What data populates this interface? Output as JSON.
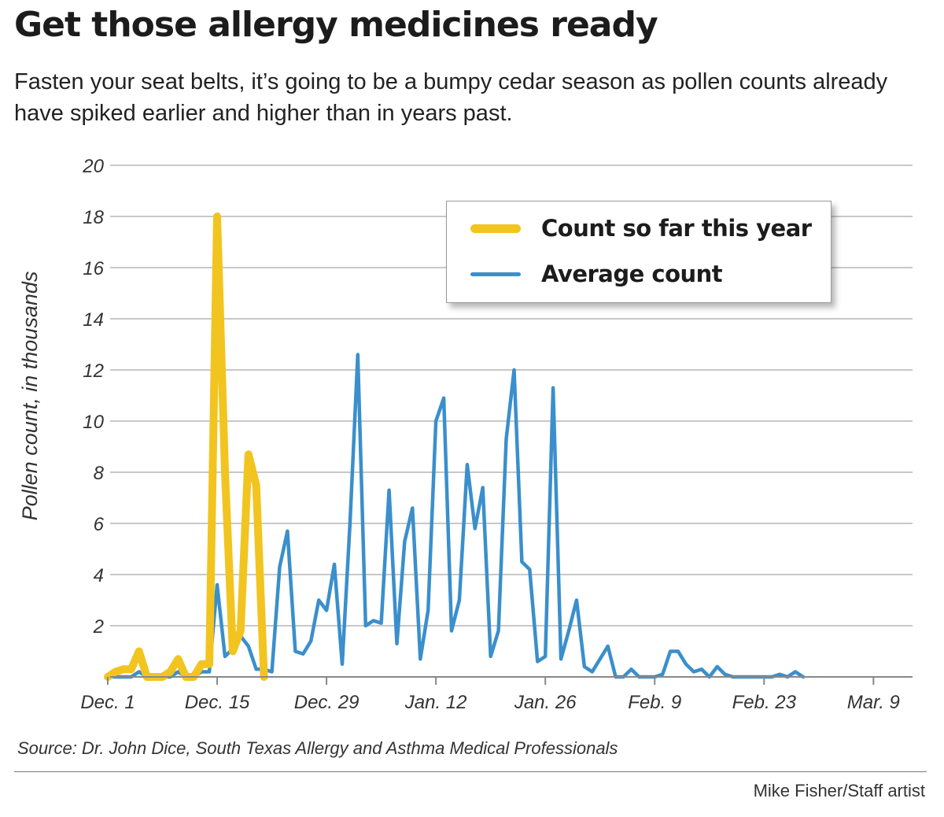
{
  "header": {
    "title": "Get those allergy medicines ready",
    "subtitle": "Fasten your seat belts, it’s going to be a bumpy cedar season as pollen counts already have spiked earlier and higher than in years past."
  },
  "footer": {
    "source": "Source: Dr. John Dice, South Texas Allergy and Asthma Medical Professionals",
    "credit": "Mike Fisher/Staff artist"
  },
  "colors": {
    "this_year": "#F2C41F",
    "average": "#3A8FCC",
    "grid": "#c8c8c8",
    "axis": "#888888"
  },
  "chart_data": {
    "type": "line",
    "title": "Get those allergy medicines ready",
    "ylabel": "Pollen count, in thousands",
    "xlabel": "",
    "x_unit": "days after Dec. 1",
    "ylim": [
      0,
      20
    ],
    "xlim": [
      0,
      103
    ],
    "yticks": [
      2,
      4,
      6,
      8,
      10,
      12,
      14,
      16,
      18,
      20
    ],
    "xticks": [
      {
        "x": 0,
        "label": "Dec. 1"
      },
      {
        "x": 14,
        "label": "Dec. 15"
      },
      {
        "x": 28,
        "label": "Dec. 29"
      },
      {
        "x": 42,
        "label": "Jan. 12"
      },
      {
        "x": 56,
        "label": "Jan. 26"
      },
      {
        "x": 70,
        "label": "Feb. 9"
      },
      {
        "x": 84,
        "label": "Feb. 23"
      },
      {
        "x": 98,
        "label": "Mar. 9"
      }
    ],
    "grid": true,
    "legend_position": "top-right",
    "series": [
      {
        "name": "Count so far this year",
        "color": "#F2C41F",
        "style": "thick",
        "points": [
          [
            0,
            0
          ],
          [
            1,
            0.2
          ],
          [
            2,
            0.3
          ],
          [
            3,
            0.3
          ],
          [
            4,
            1
          ],
          [
            5,
            0
          ],
          [
            6,
            0
          ],
          [
            7,
            0
          ],
          [
            8,
            0.2
          ],
          [
            9,
            0.7
          ],
          [
            10,
            0
          ],
          [
            11,
            0
          ],
          [
            12,
            0.5
          ],
          [
            13,
            0.5
          ],
          [
            14,
            18
          ],
          [
            15,
            8
          ],
          [
            16,
            1
          ],
          [
            17,
            1.8
          ],
          [
            18,
            8.7
          ],
          [
            19,
            7.5
          ],
          [
            20,
            0
          ]
        ]
      },
      {
        "name": "Average count",
        "color": "#3A8FCC",
        "style": "thin",
        "points": [
          [
            0,
            0
          ],
          [
            1,
            0
          ],
          [
            2,
            0
          ],
          [
            3,
            0
          ],
          [
            4,
            0.2
          ],
          [
            5,
            0
          ],
          [
            6,
            0
          ],
          [
            7,
            0
          ],
          [
            8,
            0
          ],
          [
            9,
            0.2
          ],
          [
            10,
            0
          ],
          [
            11,
            0
          ],
          [
            12,
            0.2
          ],
          [
            13,
            0.2
          ],
          [
            14,
            3.6
          ],
          [
            15,
            0.8
          ],
          [
            16,
            1.1
          ],
          [
            17,
            1.6
          ],
          [
            18,
            1.2
          ],
          [
            19,
            0.3
          ],
          [
            20,
            0.3
          ],
          [
            21,
            0.2
          ],
          [
            22,
            4.3
          ],
          [
            23,
            5.7
          ],
          [
            24,
            1
          ],
          [
            25,
            0.9
          ],
          [
            26,
            1.4
          ],
          [
            27,
            3
          ],
          [
            28,
            2.6
          ],
          [
            29,
            4.4
          ],
          [
            30,
            0.5
          ],
          [
            31,
            6
          ],
          [
            32,
            12.6
          ],
          [
            33,
            2
          ],
          [
            34,
            2.2
          ],
          [
            35,
            2.1
          ],
          [
            36,
            7.3
          ],
          [
            37,
            1.3
          ],
          [
            38,
            5.3
          ],
          [
            39,
            6.6
          ],
          [
            40,
            0.7
          ],
          [
            41,
            2.6
          ],
          [
            42,
            10
          ],
          [
            43,
            10.9
          ],
          [
            44,
            1.8
          ],
          [
            45,
            3
          ],
          [
            46,
            8.3
          ],
          [
            47,
            5.8
          ],
          [
            48,
            7.4
          ],
          [
            49,
            0.8
          ],
          [
            50,
            1.8
          ],
          [
            51,
            9.3
          ],
          [
            52,
            12
          ],
          [
            53,
            4.5
          ],
          [
            54,
            4.2
          ],
          [
            55,
            0.6
          ],
          [
            56,
            0.8
          ],
          [
            57,
            11.3
          ],
          [
            58,
            0.7
          ],
          [
            59,
            1.8
          ],
          [
            60,
            3
          ],
          [
            61,
            0.4
          ],
          [
            62,
            0.2
          ],
          [
            63,
            0.7
          ],
          [
            64,
            1.2
          ],
          [
            65,
            0
          ],
          [
            66,
            0
          ],
          [
            67,
            0.3
          ],
          [
            68,
            0
          ],
          [
            69,
            0
          ],
          [
            70,
            0
          ],
          [
            71,
            0.1
          ],
          [
            72,
            1
          ],
          [
            73,
            1
          ],
          [
            74,
            0.5
          ],
          [
            75,
            0.2
          ],
          [
            76,
            0.3
          ],
          [
            77,
            0
          ],
          [
            78,
            0.4
          ],
          [
            79,
            0.1
          ],
          [
            80,
            0
          ],
          [
            81,
            0
          ],
          [
            82,
            0
          ],
          [
            83,
            0
          ],
          [
            84,
            0
          ],
          [
            85,
            0
          ],
          [
            86,
            0.1
          ],
          [
            87,
            0
          ],
          [
            88,
            0.2
          ],
          [
            89,
            0
          ]
        ]
      }
    ]
  }
}
